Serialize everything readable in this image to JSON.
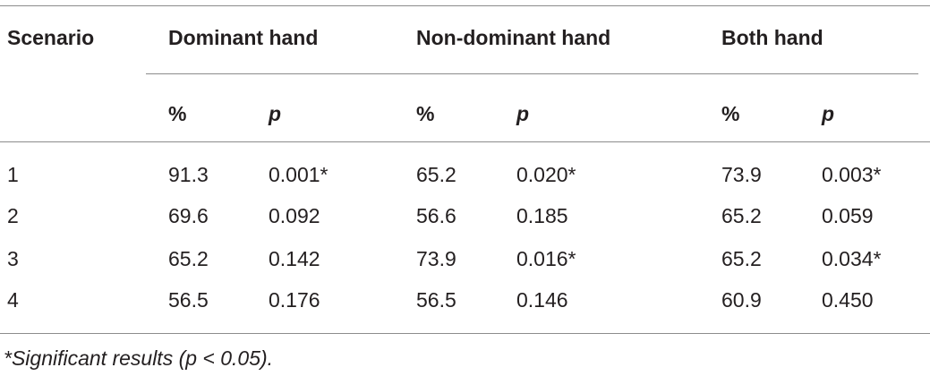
{
  "table": {
    "header": [
      "Scenario",
      "Dominant hand",
      "Non-dominant hand",
      "Both hand"
    ],
    "subheader": [
      "%",
      "p",
      "%",
      "p",
      "%",
      "p"
    ],
    "rows": [
      [
        "1",
        "91.3",
        "0.001*",
        "65.2",
        "0.020*",
        "73.9",
        "0.003*"
      ],
      [
        "2",
        "69.6",
        "0.092",
        "56.6",
        "0.185",
        "65.2",
        "0.059"
      ],
      [
        "3",
        "65.2",
        "0.142",
        "73.9",
        "0.016*",
        "65.2",
        "0.034*"
      ],
      [
        "4",
        "56.5",
        "0.176",
        "56.5",
        "0.146",
        "60.9",
        "0.450"
      ]
    ],
    "footnote": "*Significant results (p < 0.05)."
  }
}
